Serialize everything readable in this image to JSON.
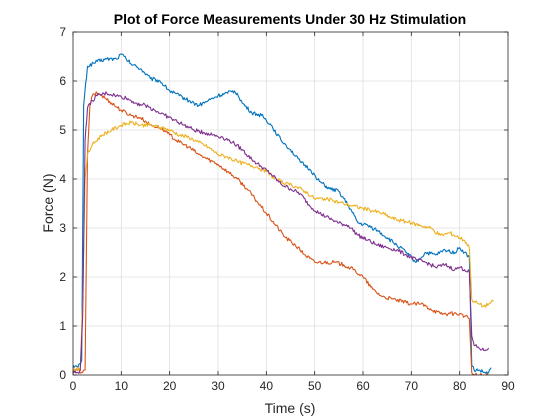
{
  "chart_data": {
    "type": "line",
    "title": "Plot of Force Measurements Under 30 Hz Stimulation",
    "xlabel": "Time (s)",
    "ylabel": "Force (N)",
    "xlim": [
      0,
      90
    ],
    "ylim": [
      0,
      7
    ],
    "xticks": [
      0,
      10,
      20,
      30,
      40,
      50,
      60,
      70,
      80,
      90
    ],
    "yticks": [
      0,
      1,
      2,
      3,
      4,
      5,
      6,
      7
    ],
    "grid": true,
    "legend": "none",
    "series": [
      {
        "color": "#0072BD",
        "x": [
          0,
          1,
          1.8,
          2.2,
          3,
          5,
          7,
          9,
          10,
          11,
          12,
          14,
          16,
          18,
          20,
          22,
          24,
          26,
          28,
          30,
          32,
          33,
          34,
          35,
          37,
          39,
          41,
          43,
          45,
          47,
          49,
          51,
          53,
          55,
          57,
          59,
          61,
          63,
          65,
          67,
          69,
          71,
          73,
          75,
          77,
          79,
          80,
          81,
          82,
          82.5,
          83,
          84,
          85,
          86,
          86.5
        ],
        "y": [
          0.2,
          0.15,
          0.3,
          5.5,
          6.3,
          6.4,
          6.45,
          6.45,
          6.55,
          6.45,
          6.35,
          6.25,
          6.05,
          6.0,
          5.8,
          5.7,
          5.6,
          5.5,
          5.6,
          5.7,
          5.75,
          5.8,
          5.75,
          5.55,
          5.35,
          5.3,
          5.1,
          4.8,
          4.6,
          4.35,
          4.2,
          3.95,
          3.8,
          3.75,
          3.45,
          3.1,
          3.05,
          2.95,
          2.8,
          2.65,
          2.5,
          2.3,
          2.5,
          2.45,
          2.55,
          2.5,
          2.6,
          2.5,
          2.4,
          0.2,
          0.1,
          0.1,
          0.05,
          0.05,
          0.15
        ]
      },
      {
        "color": "#D95319",
        "x": [
          0,
          1,
          2,
          2.5,
          3,
          3.5,
          4,
          5,
          6,
          8,
          10,
          12,
          14,
          16,
          18,
          20,
          22,
          24,
          26,
          28,
          30,
          32,
          34,
          36,
          38,
          40,
          42,
          44,
          46,
          48,
          50,
          52,
          54,
          56,
          58,
          60,
          62,
          64,
          66,
          68,
          70,
          72,
          74,
          76,
          78,
          80,
          81,
          82,
          82.5,
          83,
          84,
          85,
          86
        ],
        "y": [
          0.05,
          0.1,
          0.05,
          0.1,
          4.5,
          5.5,
          5.7,
          5.75,
          5.7,
          5.55,
          5.4,
          5.3,
          5.25,
          5.1,
          5.05,
          4.9,
          4.75,
          4.65,
          4.5,
          4.4,
          4.3,
          4.15,
          4.0,
          3.8,
          3.55,
          3.3,
          3.05,
          2.8,
          2.65,
          2.45,
          2.3,
          2.3,
          2.3,
          2.25,
          2.15,
          2.0,
          1.75,
          1.6,
          1.55,
          1.5,
          1.45,
          1.45,
          1.35,
          1.25,
          1.25,
          1.25,
          1.2,
          1.15,
          0.05,
          0.0,
          0.0,
          0.0,
          0.0
        ]
      },
      {
        "color": "#EDB120",
        "x": [
          0,
          1,
          1.5,
          2,
          2.5,
          3,
          4,
          6,
          8,
          10,
          12,
          14,
          16,
          18,
          20,
          22,
          24,
          26,
          28,
          30,
          32,
          34,
          36,
          38,
          40,
          42,
          44,
          46,
          48,
          50,
          52,
          54,
          56,
          58,
          60,
          62,
          64,
          66,
          68,
          70,
          72,
          74,
          76,
          78,
          80,
          81,
          82,
          82.5,
          83,
          84,
          85,
          86,
          87
        ],
        "y": [
          0.1,
          0.15,
          0.1,
          1.5,
          4.0,
          4.5,
          4.7,
          4.9,
          5.0,
          5.1,
          5.15,
          5.1,
          5.1,
          5.05,
          5.0,
          4.9,
          4.85,
          4.75,
          4.65,
          4.5,
          4.45,
          4.35,
          4.3,
          4.25,
          4.15,
          4.0,
          3.9,
          3.85,
          3.75,
          3.6,
          3.6,
          3.55,
          3.5,
          3.45,
          3.4,
          3.35,
          3.3,
          3.2,
          3.15,
          3.1,
          3.05,
          3.0,
          2.85,
          2.9,
          2.8,
          2.75,
          2.6,
          1.55,
          1.5,
          1.45,
          1.4,
          1.45,
          1.5
        ]
      },
      {
        "color": "#7E2F8E",
        "x": [
          0,
          1,
          1.5,
          2,
          2.5,
          3,
          4,
          5,
          7,
          9,
          11,
          13,
          15,
          17,
          19,
          21,
          23,
          25,
          27,
          29,
          31,
          33,
          35,
          37,
          39,
          41,
          43,
          45,
          47,
          49,
          51,
          53,
          55,
          57,
          59,
          61,
          63,
          65,
          67,
          69,
          71,
          73,
          75,
          77,
          79,
          80,
          81,
          82,
          82.5,
          83,
          84,
          85,
          86
        ],
        "y": [
          0.05,
          0.05,
          0.1,
          1.2,
          4.8,
          5.45,
          5.6,
          5.7,
          5.75,
          5.7,
          5.65,
          5.55,
          5.5,
          5.4,
          5.3,
          5.2,
          5.1,
          5.0,
          4.95,
          4.9,
          4.85,
          4.75,
          4.6,
          4.4,
          4.25,
          4.1,
          3.9,
          3.8,
          3.7,
          3.45,
          3.3,
          3.2,
          3.1,
          3.05,
          2.85,
          2.75,
          2.65,
          2.6,
          2.55,
          2.45,
          2.35,
          2.3,
          2.2,
          2.25,
          2.15,
          2.2,
          2.15,
          2.1,
          0.8,
          0.6,
          0.55,
          0.5,
          0.55
        ]
      }
    ]
  }
}
